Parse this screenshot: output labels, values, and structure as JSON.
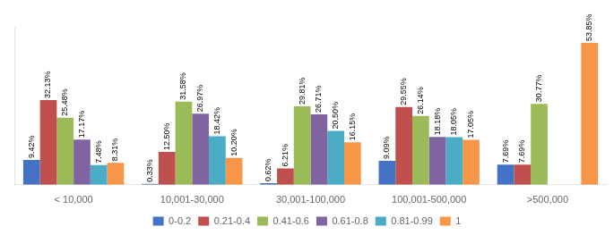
{
  "chart_data": {
    "type": "bar",
    "categories": [
      "< 10,000",
      "10,001-30,000",
      "30,001-100,000",
      "100,001-500,000",
      ">500,000"
    ],
    "series": [
      {
        "name": "0-0.2",
        "color": "#4472C4",
        "values": [
          9.42,
          0.33,
          0.62,
          9.09,
          7.69
        ],
        "value_labels": [
          "9.42%",
          "0.33%",
          "0.62%",
          "9.09%",
          "7.69%"
        ]
      },
      {
        "name": "0.21-0.4",
        "color": "#C0504D",
        "values": [
          32.13,
          12.5,
          6.21,
          29.55,
          7.69
        ],
        "value_labels": [
          "32.13%",
          "12.50%",
          "6.21%",
          "29.55%",
          "7.69%"
        ]
      },
      {
        "name": "0.41-0.6",
        "color": "#9BBB59",
        "values": [
          25.48,
          31.58,
          29.81,
          26.14,
          30.77
        ],
        "value_labels": [
          "25.48%",
          "31.58%",
          "29.81%",
          "26.14%",
          "30.77%"
        ]
      },
      {
        "name": "0.61-0.8",
        "color": "#8064A2",
        "values": [
          17.17,
          26.97,
          26.71,
          18.18,
          0.0
        ],
        "value_labels": [
          "17.17%",
          "26.97%",
          "26.71%",
          "18.18%",
          null
        ]
      },
      {
        "name": "0.81-0.99",
        "color": "#4BACC6",
        "values": [
          7.48,
          18.42,
          20.5,
          18.05,
          0.0
        ],
        "value_labels": [
          "7.48%",
          "18.42%",
          "20.50%",
          "18.05%",
          null
        ]
      },
      {
        "name": "1",
        "color": "#F79646",
        "values": [
          8.31,
          10.2,
          16.15,
          17.05,
          53.85
        ],
        "value_labels": [
          "8.31%",
          "10.20%",
          "16.15%",
          "17.05%",
          "53.85%"
        ]
      }
    ],
    "ylim": [
      0,
      60
    ],
    "grid": false,
    "legend": "bottom",
    "data_labels": true,
    "tick_labels": "x"
  }
}
